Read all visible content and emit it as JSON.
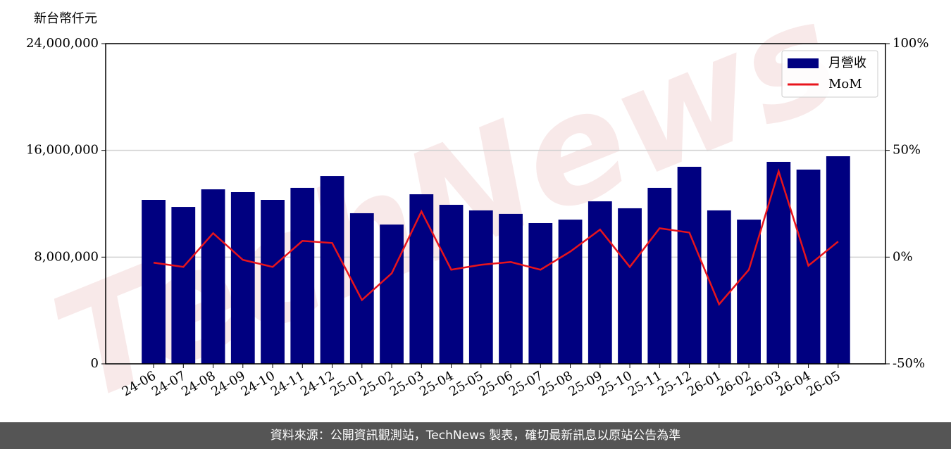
{
  "chart_data": {
    "type": "bar",
    "y_label": "新台幣仟元",
    "watermark": "TechNews",
    "categories": [
      "24-06",
      "24-07",
      "24-08",
      "24-09",
      "24-10",
      "24-11",
      "24-12",
      "25-01",
      "25-02",
      "25-03",
      "25-04",
      "25-05",
      "25-06",
      "25-07",
      "25-08",
      "25-09",
      "25-10",
      "25-11",
      "25-12",
      "26-01",
      "26-02",
      "26-03",
      "26-04",
      "26-05"
    ],
    "series": [
      {
        "name": "月營收",
        "type": "bar",
        "axis": "y",
        "color": "#000080",
        "values": [
          12290000,
          11760000,
          13080000,
          12870000,
          12290000,
          13190000,
          14080000,
          11290000,
          10440000,
          12710000,
          11920000,
          11500000,
          11240000,
          10550000,
          10810000,
          12180000,
          11660000,
          13190000,
          14770000,
          11500000,
          10810000,
          15140000,
          14560000,
          15560000
        ]
      },
      {
        "name": "MoM",
        "type": "line",
        "axis": "y2",
        "color": "#e8141c",
        "values": [
          -2.6,
          -4.6,
          11.2,
          -1.3,
          -4.6,
          7.6,
          6.6,
          -20.1,
          -7.6,
          21.4,
          -5.9,
          -3.6,
          -2.3,
          -5.9,
          2.6,
          12.9,
          -4.6,
          13.5,
          11.5,
          -22.1,
          -5.9,
          40.2,
          -4.0,
          7.3
        ]
      }
    ],
    "ylim": [
      0,
      24000000
    ],
    "yticks": [
      0,
      {
        "value": 8000000,
        "label": "8,000,000"
      },
      {
        "value": 16000000,
        "label": "16,000,000"
      },
      {
        "value": 24000000,
        "label": "24,000,000"
      }
    ],
    "y2lim": [
      -50,
      100
    ],
    "y2ticks": [
      {
        "value": -50,
        "label": "-50%"
      },
      {
        "value": 0,
        "label": "0%"
      },
      {
        "value": 50,
        "label": "50%"
      },
      {
        "value": 100,
        "label": "100%"
      }
    ],
    "grid": true,
    "legend": "upper right",
    "footer": "資料來源：公開資訊觀測站，TechNews 製表，確切最新訊息以原站公告為準"
  }
}
